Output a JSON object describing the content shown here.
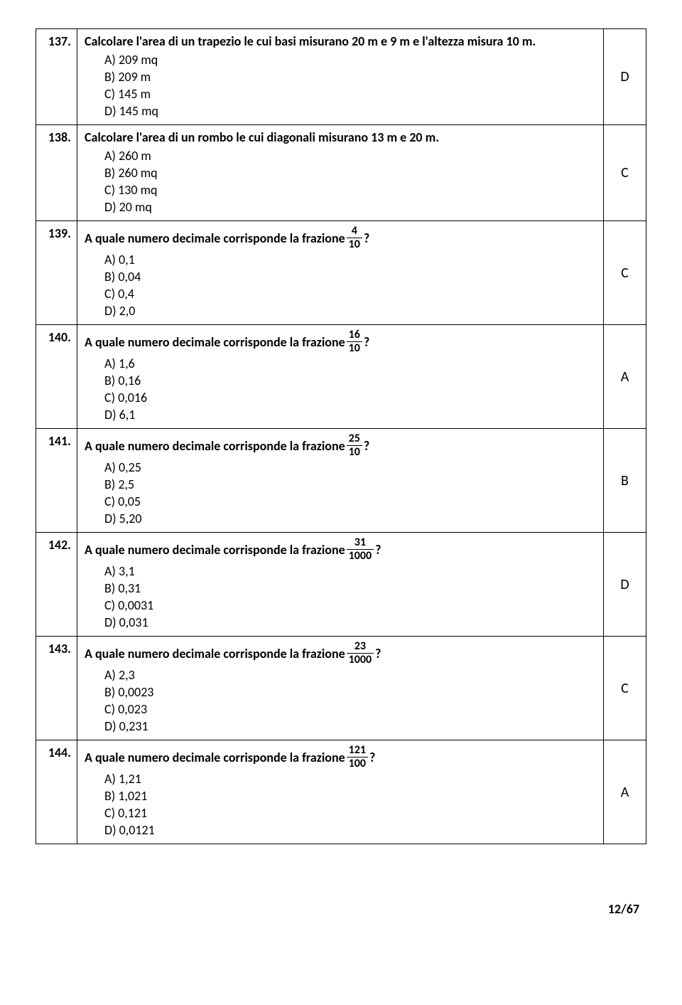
{
  "questions": [
    {
      "num": "137.",
      "text_before": "Calcolare l'area di un trapezio le cui basi misurano 20 m e 9 m e l'altezza misura 10 m.",
      "has_fraction": false,
      "options": [
        {
          "label": "A)",
          "value": "209 mq"
        },
        {
          "label": "B)",
          "value": "209 m"
        },
        {
          "label": "C)",
          "value": "145 m"
        },
        {
          "label": "D)",
          "value": "145 mq"
        }
      ],
      "answer": "D"
    },
    {
      "num": "138.",
      "text_before": "Calcolare l'area di un rombo le cui diagonali misurano 13 m e 20 m.",
      "has_fraction": false,
      "options": [
        {
          "label": "A)",
          "value": "260 m"
        },
        {
          "label": "B)",
          "value": "260 mq"
        },
        {
          "label": "C)",
          "value": "130 mq"
        },
        {
          "label": "D)",
          "value": "20 mq"
        }
      ],
      "answer": "C"
    },
    {
      "num": "139.",
      "text_before": "A quale numero decimale corrisponde la frazione ",
      "has_fraction": true,
      "frac_num": "4",
      "frac_den": "10",
      "text_after": " ?",
      "options": [
        {
          "label": "A)",
          "value": "0,1"
        },
        {
          "label": "B)",
          "value": "0,04"
        },
        {
          "label": "C)",
          "value": "0,4"
        },
        {
          "label": "D)",
          "value": "2,0"
        }
      ],
      "answer": "C"
    },
    {
      "num": "140.",
      "text_before": "A quale numero decimale corrisponde la frazione ",
      "has_fraction": true,
      "frac_num": "16",
      "frac_den": "10",
      "text_after": " ?",
      "options": [
        {
          "label": "A)",
          "value": "1,6"
        },
        {
          "label": "B)",
          "value": "0,16"
        },
        {
          "label": "C)",
          "value": "0,016"
        },
        {
          "label": "D)",
          "value": "6,1"
        }
      ],
      "answer": "A"
    },
    {
      "num": "141.",
      "text_before": "A quale numero decimale corrisponde la frazione ",
      "has_fraction": true,
      "frac_num": "25",
      "frac_den": "10",
      "text_after": " ?",
      "options": [
        {
          "label": "A)",
          "value": "0,25"
        },
        {
          "label": "B)",
          "value": "2,5"
        },
        {
          "label": "C)",
          "value": "0,05"
        },
        {
          "label": "D)",
          "value": "5,20"
        }
      ],
      "answer": "B"
    },
    {
      "num": "142.",
      "text_before": "A quale numero decimale corrisponde la frazione ",
      "has_fraction": true,
      "frac_num": "31",
      "frac_den": "1000",
      "text_after": " ?",
      "options": [
        {
          "label": "A)",
          "value": "3,1"
        },
        {
          "label": "B)",
          "value": "0,31"
        },
        {
          "label": "C)",
          "value": "0,0031"
        },
        {
          "label": "D)",
          "value": "0,031"
        }
      ],
      "answer": "D"
    },
    {
      "num": "143.",
      "text_before": "A quale numero decimale corrisponde la frazione ",
      "has_fraction": true,
      "frac_num": "23",
      "frac_den": "1000",
      "text_after": " ?",
      "options": [
        {
          "label": "A)",
          "value": "2,3"
        },
        {
          "label": "B)",
          "value": "0,0023"
        },
        {
          "label": "C)",
          "value": "0,023"
        },
        {
          "label": "D)",
          "value": "0,231"
        }
      ],
      "answer": "C"
    },
    {
      "num": "144.",
      "text_before": "A quale numero decimale corrisponde la frazione ",
      "has_fraction": true,
      "frac_num": "121",
      "frac_den": "100",
      "text_after": " ?",
      "options": [
        {
          "label": "A)",
          "value": "1,21"
        },
        {
          "label": "B)",
          "value": "1,021"
        },
        {
          "label": "C)",
          "value": "0,121"
        },
        {
          "label": "D)",
          "value": "0,0121"
        }
      ],
      "answer": "A"
    }
  ],
  "page_number": "12/67"
}
